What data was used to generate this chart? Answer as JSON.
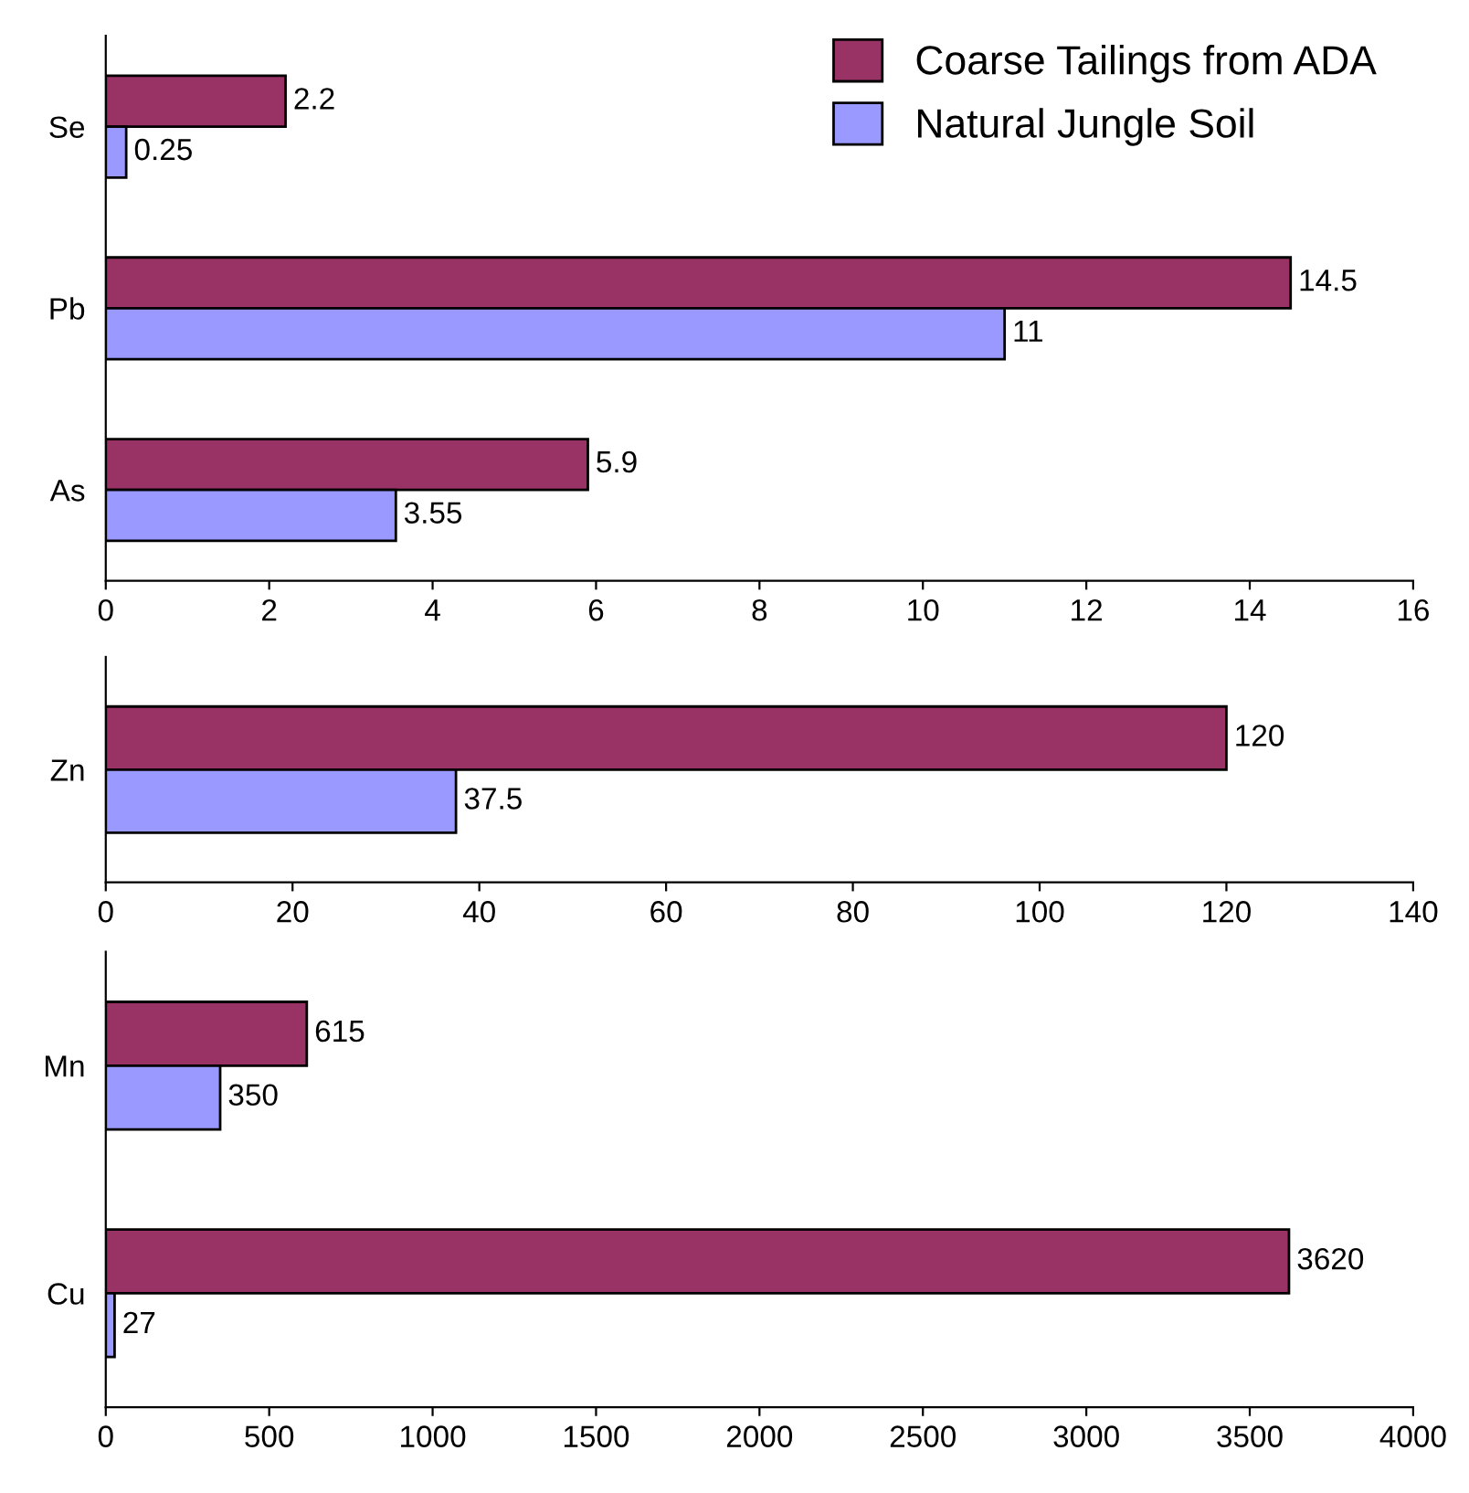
{
  "chart_data": [
    {
      "type": "bar",
      "orientation": "horizontal",
      "categories": [
        "Se",
        "Pb",
        "As"
      ],
      "series": [
        {
          "name": "Coarse Tailings from ADA",
          "color": "#993366",
          "values": [
            2.2,
            14.5,
            5.9
          ]
        },
        {
          "name": "Natural Jungle Soil",
          "color": "#9999ff",
          "values": [
            0.25,
            11,
            3.55
          ]
        }
      ],
      "xlim": [
        0,
        16
      ],
      "xticks": [
        0,
        2,
        4,
        6,
        8,
        10,
        12,
        14,
        16
      ],
      "data_labels": true,
      "legend": "top right",
      "grid": false
    },
    {
      "type": "bar",
      "orientation": "horizontal",
      "categories": [
        "Zn"
      ],
      "series": [
        {
          "color": "#993366",
          "values": [
            120
          ]
        },
        {
          "color": "#9999ff",
          "values": [
            37.5
          ]
        }
      ],
      "xlim": [
        0,
        140
      ],
      "xticks": [
        0,
        20,
        40,
        60,
        80,
        100,
        120,
        140
      ],
      "data_labels": true,
      "grid": false
    },
    {
      "type": "bar",
      "orientation": "horizontal",
      "categories": [
        "Mn",
        "Cu"
      ],
      "series": [
        {
          "color": "#993366",
          "values": [
            615,
            3620
          ]
        },
        {
          "color": "#9999ff",
          "values": [
            350,
            27
          ]
        }
      ],
      "xlim": [
        0,
        4000
      ],
      "xticks": [
        0,
        500,
        1000,
        1500,
        2000,
        2500,
        3000,
        3500,
        4000
      ],
      "data_labels": true,
      "grid": false
    }
  ]
}
